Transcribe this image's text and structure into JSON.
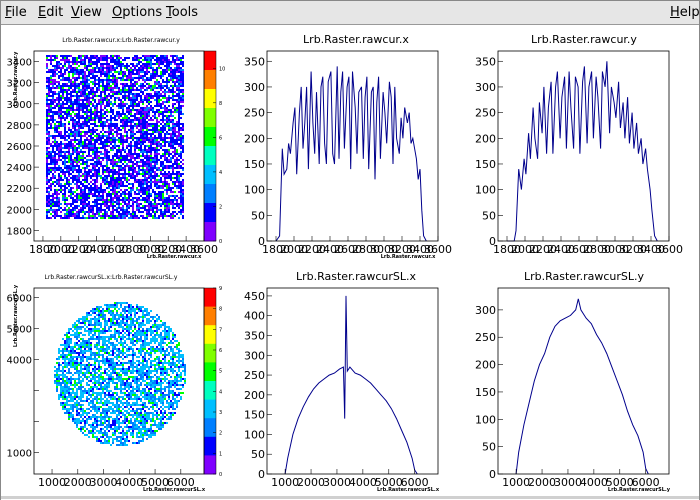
{
  "menubar": {
    "items": [
      {
        "label": "File",
        "mnemonic": "F"
      },
      {
        "label": "Edit",
        "mnemonic": "E"
      },
      {
        "label": "View",
        "mnemonic": "V"
      },
      {
        "label": "Options",
        "mnemonic": "O"
      },
      {
        "label": "Tools",
        "mnemonic": "T"
      }
    ],
    "help": {
      "label": "Help",
      "mnemonic": "H"
    }
  },
  "colors": {
    "histogram_line": "#00008c",
    "frame": "#000000",
    "palette": [
      "#ff0000",
      "#ff7f00",
      "#ffff00",
      "#7fff00",
      "#00ff00",
      "#00ffbf",
      "#00bfff",
      "#007fff",
      "#0000ff",
      "#7f00ff"
    ]
  },
  "chart_data": [
    {
      "id": "raw-2d",
      "type": "heatmap",
      "title": "Lrb.Raster.rawcur.x:Lrb.Raster.rawcur.y",
      "xlabel": "Lrb.Raster.rawcur.x",
      "ylabel": "Lrb.Raster.rawcur.y",
      "xlim": [
        1700,
        3600
      ],
      "ylim": [
        1700,
        3500
      ],
      "x_ticks": [
        1800,
        2000,
        2200,
        2400,
        2600,
        2800,
        3000,
        3200,
        3400,
        3600
      ],
      "y_ticks": [
        1800,
        2000,
        2200,
        2400,
        2600,
        2800,
        3000,
        3200,
        3400
      ],
      "y_tick_labels": [
        "1800",
        "2000",
        "2200",
        "2400",
        "2600",
        "2800",
        "3000",
        "3200",
        "3400"
      ],
      "shape": "rectangle",
      "region": {
        "x": [
          1830,
          3370
        ],
        "y": [
          1920,
          3480
        ]
      },
      "z_range": [
        0,
        11
      ],
      "z_ticks": [
        0,
        2,
        4,
        6,
        8,
        10
      ]
    },
    {
      "id": "raw-x",
      "type": "line",
      "title": "Lrb.Raster.rawcur.x",
      "xlabel": "Lrb.Raster.rawcur.x",
      "xlim": [
        1700,
        3600
      ],
      "ylim": [
        0,
        370
      ],
      "x_ticks": [
        1800,
        2000,
        2200,
        2400,
        2600,
        2800,
        3000,
        3200,
        3400,
        3600
      ],
      "y_ticks": [
        0,
        50,
        100,
        150,
        200,
        250,
        300,
        350
      ],
      "x": [
        1800,
        1840,
        1870,
        1890,
        1920,
        1940,
        1960,
        1990,
        2010,
        2030,
        2060,
        2080,
        2100,
        2120,
        2140,
        2160,
        2190,
        2210,
        2230,
        2250,
        2280,
        2300,
        2320,
        2340,
        2360,
        2380,
        2410,
        2430,
        2450,
        2480,
        2500,
        2520,
        2540,
        2560,
        2590,
        2610,
        2630,
        2650,
        2680,
        2700,
        2720,
        2750,
        2770,
        2790,
        2810,
        2830,
        2860,
        2880,
        2900,
        2920,
        2940,
        2960,
        2990,
        3010,
        3030,
        3060,
        3080,
        3100,
        3120,
        3140,
        3170,
        3190,
        3210,
        3230,
        3260,
        3280,
        3300,
        3320,
        3340,
        3360,
        3380,
        3400,
        3420,
        3440,
        3470
      ],
      "values": [
        0,
        10,
        180,
        130,
        140,
        190,
        170,
        230,
        260,
        130,
        250,
        300,
        180,
        230,
        300,
        140,
        330,
        230,
        170,
        290,
        150,
        300,
        320,
        190,
        150,
        310,
        330,
        170,
        150,
        340,
        160,
        290,
        330,
        180,
        300,
        320,
        140,
        330,
        260,
        170,
        290,
        300,
        160,
        280,
        320,
        140,
        290,
        300,
        120,
        270,
        320,
        160,
        290,
        250,
        190,
        310,
        280,
        150,
        300,
        200,
        170,
        240,
        200,
        260,
        230,
        250,
        190,
        200,
        180,
        160,
        120,
        140,
        60,
        10,
        0
      ]
    },
    {
      "id": "raw-y",
      "type": "line",
      "title": "Lrb.Raster.rawcur.y",
      "xlabel": "",
      "xlim": [
        1700,
        3600
      ],
      "ylim": [
        0,
        370
      ],
      "x_ticks": [
        1800,
        2000,
        2200,
        2400,
        2600,
        2800,
        3000,
        3200,
        3400,
        3600
      ],
      "y_ticks": [
        0,
        50,
        100,
        150,
        200,
        250,
        300,
        350
      ],
      "x": [
        1800,
        1880,
        1900,
        1930,
        1960,
        1990,
        2010,
        2040,
        2060,
        2090,
        2110,
        2140,
        2160,
        2190,
        2210,
        2240,
        2260,
        2290,
        2310,
        2340,
        2360,
        2390,
        2410,
        2440,
        2460,
        2490,
        2510,
        2540,
        2560,
        2590,
        2610,
        2640,
        2660,
        2690,
        2710,
        2740,
        2760,
        2790,
        2810,
        2840,
        2860,
        2890,
        2910,
        2940,
        2960,
        2990,
        3010,
        3040,
        3060,
        3090,
        3110,
        3140,
        3160,
        3190,
        3210,
        3240,
        3260,
        3290,
        3310,
        3340,
        3360,
        3390,
        3410,
        3440,
        3470
      ],
      "values": [
        0,
        0,
        20,
        140,
        100,
        160,
        130,
        210,
        160,
        260,
        200,
        160,
        270,
        210,
        300,
        170,
        260,
        310,
        170,
        300,
        330,
        200,
        280,
        320,
        180,
        330,
        260,
        180,
        320,
        300,
        170,
        310,
        340,
        190,
        300,
        330,
        200,
        320,
        280,
        180,
        330,
        300,
        350,
        210,
        300,
        270,
        240,
        310,
        220,
        270,
        200,
        280,
        190,
        250,
        180,
        230,
        170,
        200,
        150,
        180,
        140,
        100,
        60,
        10,
        0
      ]
    },
    {
      "id": "sl-2d",
      "type": "heatmap",
      "title": "Lrb.Raster.rawcurSL.x:Lrb.Raster.rawcurSL.y",
      "xlabel": "Lrb.Raster.rawcurSL.x",
      "ylabel": "Lrb.Raster.rawcurSL.y",
      "xlim": [
        300,
        6900
      ],
      "ylim": [
        300,
        6300
      ],
      "x_ticks": [
        1000,
        2000,
        3000,
        4000,
        5000,
        6000
      ],
      "y_ticks": [
        1000,
        2000,
        3000,
        4000,
        5000,
        6000
      ],
      "y_tick_labels": [
        "1000",
        "",
        "",
        "4000",
        "5000",
        "6000"
      ],
      "shape": "disc",
      "center": [
        3600,
        3550
      ],
      "radius": 2550,
      "z_range": [
        0,
        9
      ],
      "z_ticks": [
        0,
        1,
        2,
        3,
        4,
        5,
        6,
        7,
        8,
        9
      ]
    },
    {
      "id": "sl-x",
      "type": "line",
      "title": "Lrb.Raster.rawcurSL.x",
      "xlabel": "Lrb.Raster.rawcurSL.x",
      "xlim": [
        300,
        6900
      ],
      "ylim": [
        0,
        470
      ],
      "x_ticks": [
        1000,
        2000,
        3000,
        4000,
        5000,
        6000
      ],
      "y_ticks": [
        0,
        50,
        100,
        150,
        200,
        250,
        300,
        350,
        400,
        450
      ],
      "x": [
        1000,
        1100,
        1300,
        1500,
        1700,
        1900,
        2100,
        2300,
        2500,
        2700,
        2900,
        3100,
        3250,
        3300,
        3350,
        3400,
        3500,
        3700,
        3900,
        4100,
        4300,
        4500,
        4700,
        4900,
        5100,
        5300,
        5500,
        5700,
        5900,
        6000,
        6100
      ],
      "values": [
        0,
        40,
        100,
        140,
        170,
        195,
        215,
        230,
        240,
        250,
        255,
        265,
        270,
        140,
        450,
        260,
        270,
        255,
        250,
        240,
        230,
        215,
        200,
        185,
        165,
        140,
        110,
        80,
        40,
        10,
        0
      ]
    },
    {
      "id": "sl-y",
      "type": "line",
      "title": "Lrb.Raster.rawcurSL.y",
      "xlabel": "Lrb.Raster.rawcurSL.y",
      "xlim": [
        300,
        6900
      ],
      "ylim": [
        0,
        340
      ],
      "x_ticks": [
        1000,
        2000,
        3000,
        4000,
        5000,
        6000
      ],
      "y_ticks": [
        0,
        50,
        100,
        150,
        200,
        250,
        300
      ],
      "x": [
        1000,
        1100,
        1300,
        1500,
        1700,
        1900,
        2100,
        2300,
        2500,
        2700,
        2900,
        3100,
        3300,
        3400,
        3500,
        3700,
        3900,
        4100,
        4300,
        4500,
        4700,
        4900,
        5100,
        5300,
        5500,
        5700,
        5900,
        6000,
        6100
      ],
      "values": [
        0,
        40,
        90,
        130,
        170,
        200,
        220,
        250,
        270,
        280,
        285,
        290,
        300,
        320,
        300,
        285,
        275,
        255,
        240,
        220,
        195,
        170,
        145,
        115,
        90,
        70,
        40,
        10,
        0
      ]
    }
  ]
}
